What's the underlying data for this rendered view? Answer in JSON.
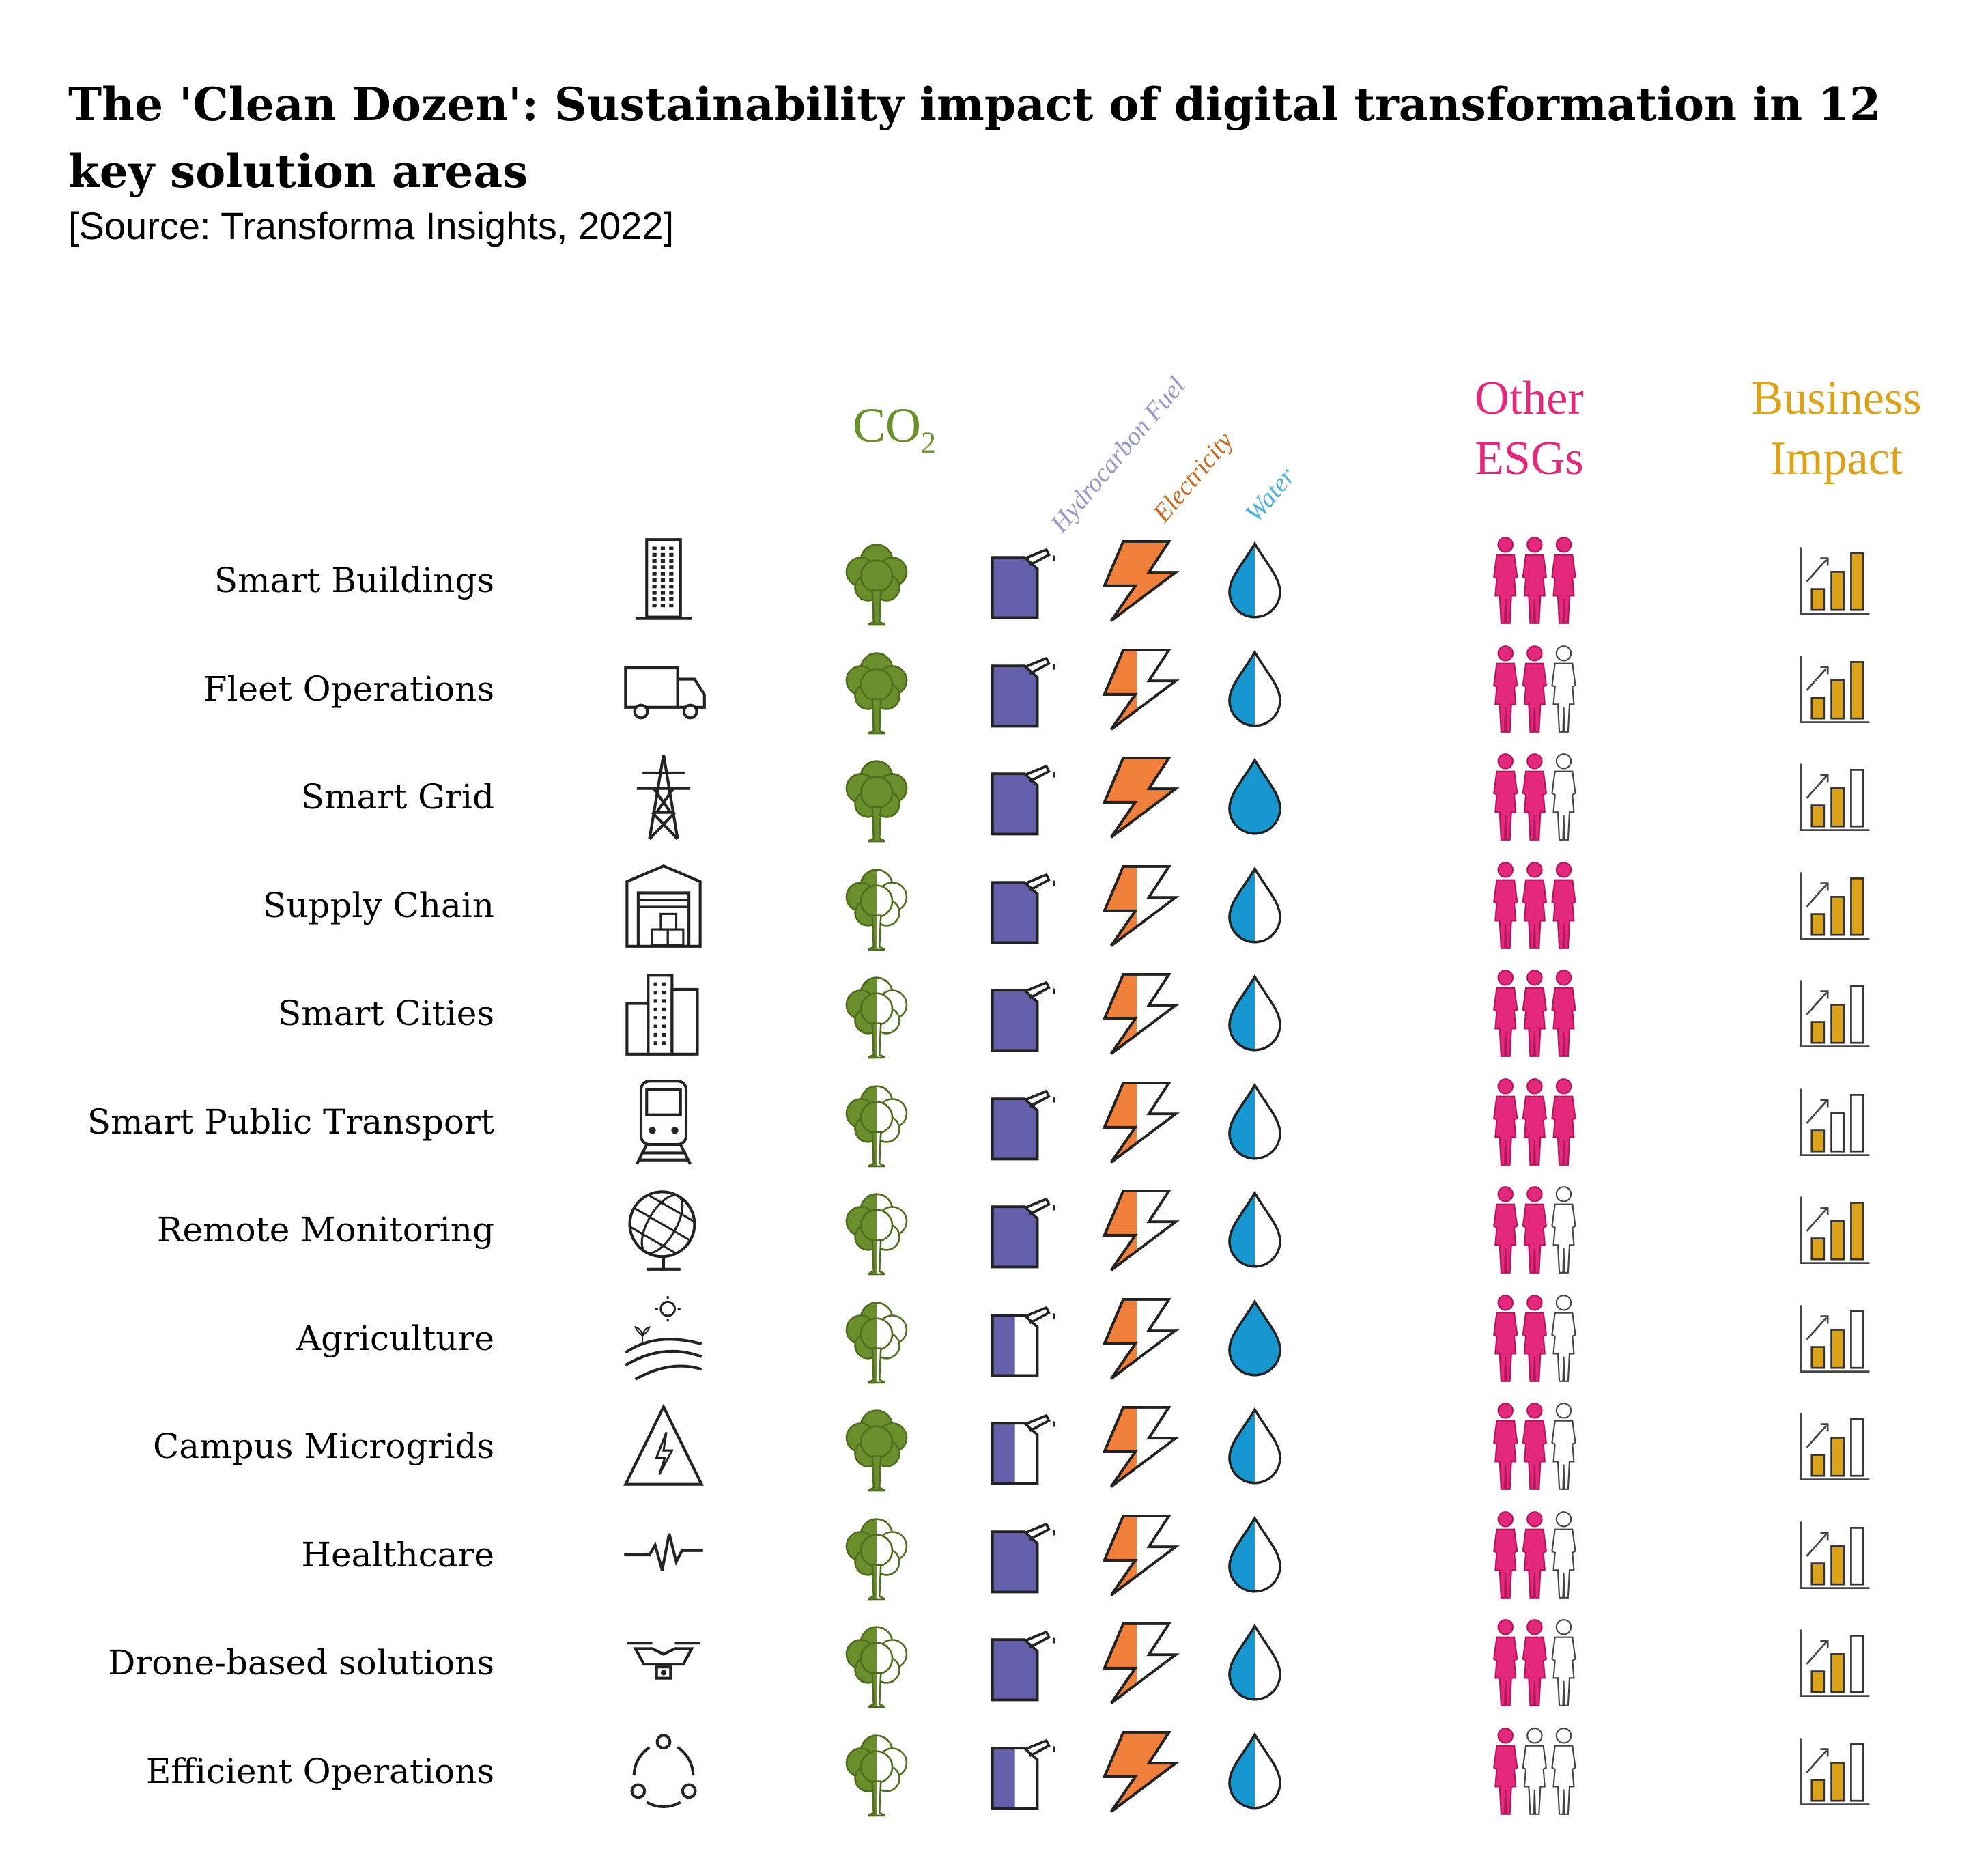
{
  "title": "The 'Clean Dozen': Sustainability impact of digital transformation in 12 key solution areas",
  "source": "[Source: Transforma Insights, 2022]",
  "headers": {
    "co2": "CO",
    "co2_sub": "2",
    "fuel": "Hydrocarbon Fuel",
    "electricity": "Electricity",
    "water": "Water",
    "esg_line1": "Other",
    "esg_line2": "ESGs",
    "biz_line1": "Business",
    "biz_line2": "Impact"
  },
  "colors": {
    "co2": "#6a8f2c",
    "fuel": "#6560ab",
    "fuel_label": "#9a98c8",
    "electricity": "#f07f3c",
    "electricity_label": "#c8681f",
    "water": "#1896d0",
    "water_label": "#4fb2d8",
    "esg": "#e4287c",
    "business": "#dba21a"
  },
  "chart_data": {
    "type": "table",
    "title": "The 'Clean Dozen': Sustainability impact of digital transformation in 12 key solution areas",
    "columns": [
      "CO2",
      "Hydrocarbon Fuel",
      "Electricity",
      "Water",
      "Other ESGs",
      "Business Impact"
    ],
    "scales": {
      "co2": "fraction of tree filled (0-1)",
      "fuel": "fraction of can filled",
      "electricity": "fraction of bolt filled",
      "water": "fraction of drop filled",
      "esg": "number of filled figures out of 3",
      "business": "number of filled bars out of 3"
    },
    "rows": [
      {
        "label": "Smart Buildings",
        "icon": "building-icon",
        "co2": 1,
        "fuel": 1,
        "electricity": 1,
        "water": 0.5,
        "esg": 3,
        "business": 3
      },
      {
        "label": "Fleet Operations",
        "icon": "truck-icon",
        "co2": 1,
        "fuel": 1,
        "electricity": 0.5,
        "water": 0.5,
        "esg": 2,
        "business": 3
      },
      {
        "label": "Smart Grid",
        "icon": "pylon-icon",
        "co2": 1,
        "fuel": 1,
        "electricity": 1,
        "water": 1,
        "esg": 2,
        "business": 2
      },
      {
        "label": "Supply Chain",
        "icon": "warehouse-icon",
        "co2": 0.5,
        "fuel": 1,
        "electricity": 0.5,
        "water": 0.5,
        "esg": 3,
        "business": 3
      },
      {
        "label": "Smart Cities",
        "icon": "city-icon",
        "co2": 0.5,
        "fuel": 1,
        "electricity": 0.5,
        "water": 0.5,
        "esg": 3,
        "business": 2
      },
      {
        "label": "Smart Public Transport",
        "icon": "train-icon",
        "co2": 0.5,
        "fuel": 1,
        "electricity": 0.5,
        "water": 0.5,
        "esg": 3,
        "business": 1
      },
      {
        "label": "Remote Monitoring",
        "icon": "globe-icon",
        "co2": 0.5,
        "fuel": 1,
        "electricity": 0.5,
        "water": 0.5,
        "esg": 2,
        "business": 3
      },
      {
        "label": "Agriculture",
        "icon": "farm-icon",
        "co2": 0.5,
        "fuel": 0.5,
        "electricity": 0.5,
        "water": 1,
        "esg": 2,
        "business": 2
      },
      {
        "label": "Campus Microgrids",
        "icon": "high-voltage-icon",
        "co2": 1,
        "fuel": 0.5,
        "electricity": 0.5,
        "water": 0.5,
        "esg": 2,
        "business": 2
      },
      {
        "label": "Healthcare",
        "icon": "heartbeat-icon",
        "co2": 0.5,
        "fuel": 1,
        "electricity": 0.5,
        "water": 0.5,
        "esg": 2,
        "business": 2
      },
      {
        "label": "Drone-based solutions",
        "icon": "drone-icon",
        "co2": 0.5,
        "fuel": 1,
        "electricity": 0.5,
        "water": 0.5,
        "esg": 2,
        "business": 2
      },
      {
        "label": "Efficient Operations",
        "icon": "cycle-icon",
        "co2": 0.5,
        "fuel": 0.5,
        "electricity": 1,
        "water": 0.5,
        "esg": 1,
        "business": 2
      }
    ]
  }
}
